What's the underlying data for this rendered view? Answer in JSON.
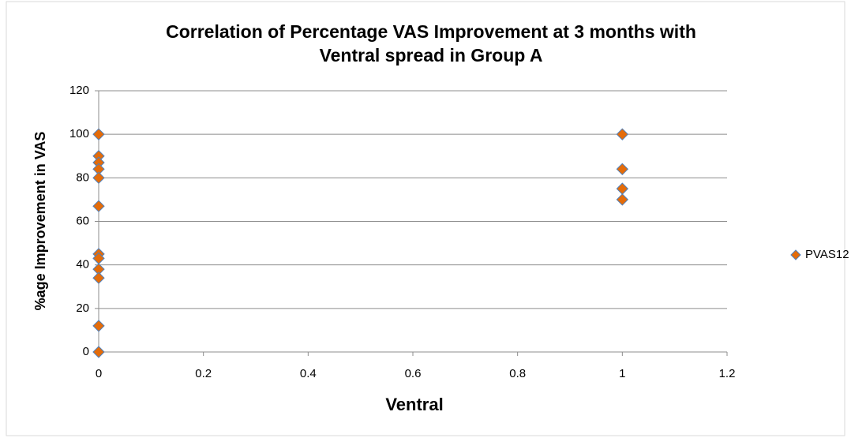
{
  "chart_data": {
    "type": "scatter",
    "title": [
      "Correlation of Percentage VAS Improvement at 3 months with",
      "Ventral spread in Group A"
    ],
    "x_label": "Ventral",
    "y_label": "%age Improvement in VAS",
    "series": [
      {
        "name": "PVAS12",
        "color": "#e46c0a",
        "edge": "#4f81bd",
        "x": [
          0,
          0,
          0,
          0,
          0,
          0,
          0,
          0,
          0,
          0,
          0,
          0,
          1,
          1,
          1,
          1
        ],
        "values": [
          100,
          90,
          87,
          84,
          80,
          67,
          45,
          43,
          38,
          34,
          12,
          0,
          100,
          84,
          75,
          70
        ]
      }
    ],
    "xlim": [
      0,
      1.2
    ],
    "xticks": [
      0,
      0.2,
      0.4,
      0.6,
      0.8,
      1,
      1.2
    ],
    "ylim": [
      0,
      120
    ],
    "yticks": [
      0,
      20,
      40,
      60,
      80,
      100,
      120
    ],
    "grid": true,
    "legend": "right"
  }
}
